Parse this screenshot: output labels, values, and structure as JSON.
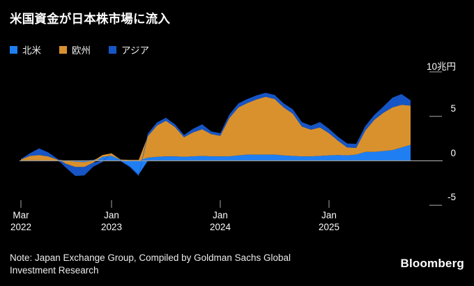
{
  "header": {
    "title": "米国資金が日本株市場に流入"
  },
  "legend": [
    {
      "label": "北米",
      "color": "#1f7ef2"
    },
    {
      "label": "欧州",
      "color": "#d9912e"
    },
    {
      "label": "アジア",
      "color": "#1655c5"
    }
  ],
  "footer": {
    "note_line1": "Note: Japan Exchange Group, Compiled by Goldman Sachs Global",
    "note_line2": "Investment Research",
    "brand": "Bloomberg"
  },
  "colors": {
    "background": "#000000",
    "zero_line": "#9b9b9b",
    "tick": "#8a8a8a",
    "text": "#ffffff"
  },
  "chart_data": {
    "type": "area",
    "stacked": true,
    "diverging": true,
    "title": "米国資金が日本株市場に流入",
    "unit": "兆円",
    "ylim": [
      -5,
      10
    ],
    "y_ticks": [
      {
        "value": 10,
        "label": "10兆円"
      },
      {
        "value": 5,
        "label": "5"
      },
      {
        "value": 0,
        "label": "0"
      },
      {
        "value": -5,
        "label": "-5"
      }
    ],
    "x_ticks": [
      {
        "month": "Mar",
        "year": "2022",
        "index": 0
      },
      {
        "month": "Jan",
        "year": "2023",
        "index": 10
      },
      {
        "month": "Jan",
        "year": "2024",
        "index": 22
      },
      {
        "month": "Jan",
        "year": "2025",
        "index": 34
      }
    ],
    "months": [
      "2022-03",
      "2022-04",
      "2022-05",
      "2022-06",
      "2022-07",
      "2022-08",
      "2022-09",
      "2022-10",
      "2022-11",
      "2022-12",
      "2023-01",
      "2023-02",
      "2023-03",
      "2023-04",
      "2023-05",
      "2023-06",
      "2023-07",
      "2023-08",
      "2023-09",
      "2023-10",
      "2023-11",
      "2023-12",
      "2024-01",
      "2024-02",
      "2024-03",
      "2024-04",
      "2024-05",
      "2024-06",
      "2024-07",
      "2024-08",
      "2024-09",
      "2024-10",
      "2024-11",
      "2024-12",
      "2025-01",
      "2025-02",
      "2025-03",
      "2025-04",
      "2025-05",
      "2025-06",
      "2025-07",
      "2025-08",
      "2025-09",
      "2025-10"
    ],
    "series": [
      {
        "name": "北米",
        "color": "#1f7ef2",
        "values": [
          0.05,
          0.05,
          0.05,
          0,
          0,
          0,
          -0.1,
          -0.15,
          0.1,
          0.45,
          0.55,
          0.1,
          -0.6,
          -1.55,
          0.35,
          0.45,
          0.5,
          0.5,
          0.45,
          0.5,
          0.55,
          0.5,
          0.5,
          0.5,
          0.6,
          0.7,
          0.7,
          0.7,
          0.7,
          0.6,
          0.55,
          0.5,
          0.5,
          0.55,
          0.6,
          0.65,
          0.6,
          0.7,
          1.0,
          1.0,
          1.1,
          1.2,
          1.5,
          1.8
        ]
      },
      {
        "name": "欧州",
        "color": "#d9912e",
        "values": [
          0.1,
          0.5,
          0.6,
          0.5,
          0.15,
          -0.35,
          -0.6,
          -0.55,
          -0.2,
          0.2,
          0.3,
          0.05,
          0.1,
          0.1,
          2.4,
          3.5,
          4.0,
          3.3,
          2.2,
          2.7,
          3.0,
          2.5,
          2.3,
          4.3,
          5.4,
          5.8,
          6.2,
          6.5,
          6.25,
          5.4,
          4.75,
          3.35,
          3.0,
          3.2,
          2.5,
          1.6,
          0.9,
          0.75,
          2.4,
          3.6,
          4.3,
          4.8,
          4.8,
          4.4
        ]
      },
      {
        "name": "アジア",
        "color": "#1655c5",
        "values": [
          0.05,
          0.3,
          0.75,
          0.45,
          0.1,
          -0.45,
          -1.0,
          -0.95,
          -0.45,
          -0.15,
          0.0,
          -0.05,
          -0.1,
          -0.15,
          0.3,
          0.35,
          0.35,
          0.3,
          0.25,
          0.4,
          0.55,
          0.3,
          0.3,
          0.4,
          0.45,
          0.45,
          0.45,
          0.45,
          0.45,
          0.45,
          0.5,
          0.5,
          0.45,
          0.6,
          0.5,
          0.45,
          0.45,
          0.45,
          0.5,
          0.55,
          0.7,
          1.1,
          1.2,
          0.6
        ]
      }
    ]
  }
}
